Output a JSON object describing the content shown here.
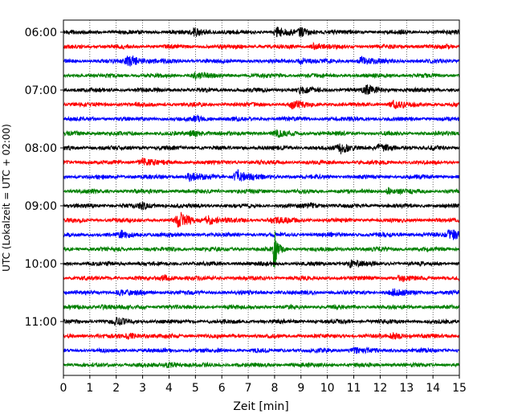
{
  "chart_data": {
    "type": "line",
    "title": "",
    "xlabel": "Zeit  [min]",
    "ylabel": "UTC (Lokalzeit = UTC + 02:00)",
    "xlim": [
      0,
      15
    ],
    "x_ticks": [
      0,
      1,
      2,
      3,
      4,
      5,
      6,
      7,
      8,
      9,
      10,
      11,
      12,
      13,
      14,
      15
    ],
    "x_tick_labels": [
      "0",
      "1",
      "2",
      "3",
      "4",
      "5",
      "6",
      "7",
      "8",
      "9",
      "10",
      "11",
      "12",
      "13",
      "14",
      "15"
    ],
    "y_tick_labels": [
      "06:00",
      "07:00",
      "08:00",
      "09:00",
      "10:00",
      "11:00"
    ],
    "vertical_grid": "dotted, every 1 min",
    "trace_interval_min": 15,
    "trace_color_cycle": [
      "#000000",
      "#ff0000",
      "#0000ff",
      "#008000"
    ],
    "traces": [
      {
        "start": "06:00",
        "events": [
          {
            "t": 5.0,
            "amp": 1.3
          },
          {
            "t": 8.1,
            "amp": 1.6
          },
          {
            "t": 9.0,
            "amp": 1.3
          }
        ]
      },
      {
        "start": "06:15",
        "events": [
          {
            "t": 9.5,
            "amp": 1.0
          }
        ]
      },
      {
        "start": "06:30",
        "events": [
          {
            "t": 2.5,
            "amp": 2.6
          },
          {
            "t": 9.0,
            "amp": 1.1
          },
          {
            "t": 11.3,
            "amp": 1.4
          }
        ]
      },
      {
        "start": "06:45",
        "events": [
          {
            "t": 5.0,
            "amp": 1.2
          }
        ]
      },
      {
        "start": "07:00",
        "events": [
          {
            "t": 9.0,
            "amp": 1.0
          },
          {
            "t": 11.5,
            "amp": 1.6
          }
        ]
      },
      {
        "start": "07:15",
        "events": [
          {
            "t": 8.7,
            "amp": 1.4
          },
          {
            "t": 12.5,
            "amp": 1.2
          }
        ]
      },
      {
        "start": "07:30",
        "events": [
          {
            "t": 5.0,
            "amp": 0.9
          }
        ]
      },
      {
        "start": "07:45",
        "events": [
          {
            "t": 4.9,
            "amp": 1.1
          },
          {
            "t": 8.1,
            "amp": 0.9
          }
        ]
      },
      {
        "start": "08:00",
        "events": [
          {
            "t": 10.5,
            "amp": 2.0
          },
          {
            "t": 12.0,
            "amp": 1.1
          }
        ]
      },
      {
        "start": "08:15",
        "events": [
          {
            "t": 3.0,
            "amp": 1.4
          }
        ]
      },
      {
        "start": "08:30",
        "events": [
          {
            "t": 4.8,
            "amp": 1.6
          },
          {
            "t": 6.6,
            "amp": 2.5
          }
        ]
      },
      {
        "start": "08:45",
        "events": [
          {
            "t": 12.3,
            "amp": 1.2
          }
        ]
      },
      {
        "start": "09:00",
        "events": [
          {
            "t": 3.0,
            "amp": 1.0
          },
          {
            "t": 9.2,
            "amp": 0.9
          }
        ]
      },
      {
        "start": "09:15",
        "events": [
          {
            "t": 4.4,
            "amp": 3.0
          },
          {
            "t": 5.5,
            "amp": 1.5
          },
          {
            "t": 8.0,
            "amp": 1.2
          }
        ]
      },
      {
        "start": "09:30",
        "events": [
          {
            "t": 2.2,
            "amp": 1.2
          },
          {
            "t": 14.7,
            "amp": 2.3
          }
        ]
      },
      {
        "start": "09:45",
        "events": [
          {
            "t": 8.0,
            "amp": 7.5
          }
        ]
      },
      {
        "start": "10:00",
        "events": [
          {
            "t": 10.9,
            "amp": 1.1
          }
        ]
      },
      {
        "start": "10:15",
        "events": [
          {
            "t": 3.8,
            "amp": 1.0
          },
          {
            "t": 12.8,
            "amp": 1.0
          }
        ]
      },
      {
        "start": "10:30",
        "events": [
          {
            "t": 2.1,
            "amp": 1.0
          },
          {
            "t": 12.5,
            "amp": 1.1
          }
        ]
      },
      {
        "start": "10:45",
        "events": [
          {
            "t": 1.5,
            "amp": 0.9
          }
        ]
      },
      {
        "start": "11:00",
        "events": [
          {
            "t": 2.0,
            "amp": 1.0
          }
        ]
      },
      {
        "start": "11:15",
        "events": [
          {
            "t": 2.5,
            "amp": 1.0
          },
          {
            "t": 12.5,
            "amp": 1.0
          }
        ]
      },
      {
        "start": "11:30",
        "events": [
          {
            "t": 11.0,
            "amp": 1.0
          }
        ]
      },
      {
        "start": "11:45",
        "events": [
          {
            "t": 4.0,
            "amp": 1.0
          }
        ]
      }
    ]
  }
}
